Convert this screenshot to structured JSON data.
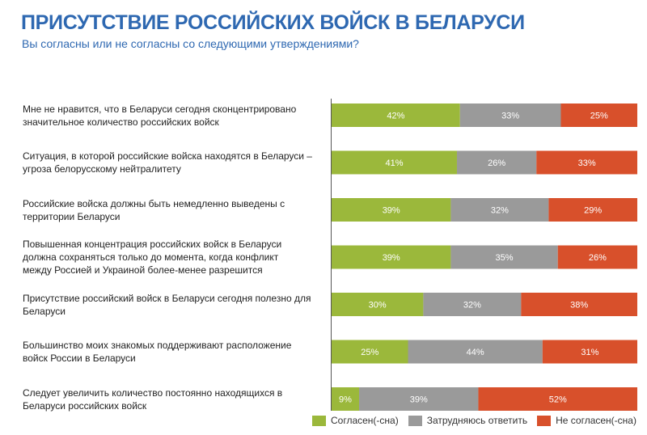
{
  "chart_data": {
    "type": "bar",
    "orientation": "horizontal-stacked-100",
    "title": "ПРИСУТСТВИЕ РОССИЙСКИХ ВОЙСК В БЕЛАРУСИ",
    "subtitle": "Вы согласны или не согласны со следующими утверждениями?",
    "categories": [
      "Мне не нравится, что в Беларуси сегодня сконцентрировано значительное количество российских войск",
      "Ситуация, в которой российские войска находятся в Беларуси – угроза белорусскому нейтралитету",
      "Российские войска должны быть немедленно выведены с территории Беларуси",
      "Повышенная концентрация российских войск в Беларуси должна сохраняться только до момента, когда конфликт между Россией и Украиной более-менее разрешится",
      "Присутствие российский войск в Беларуси сегодня полезно для Беларуси",
      "Большинство моих знакомых поддерживают расположение войск России в Беларуси",
      "Следует увеличить количество постоянно находящихся в Беларуси российских войск"
    ],
    "series": [
      {
        "name": "Согласен(-сна)",
        "color": "#9bb83b",
        "values": [
          42,
          41,
          39,
          39,
          30,
          25,
          9
        ]
      },
      {
        "name": "Затрудняюсь ответить",
        "color": "#9a9a9a",
        "values": [
          33,
          26,
          32,
          35,
          32,
          44,
          39
        ]
      },
      {
        "name": "Не согласен(-сна)",
        "color": "#d8502b",
        "values": [
          25,
          33,
          29,
          26,
          38,
          31,
          52
        ]
      }
    ],
    "value_suffix": "%",
    "xlim": [
      0,
      100
    ],
    "legend": "bottom",
    "grid": false
  }
}
